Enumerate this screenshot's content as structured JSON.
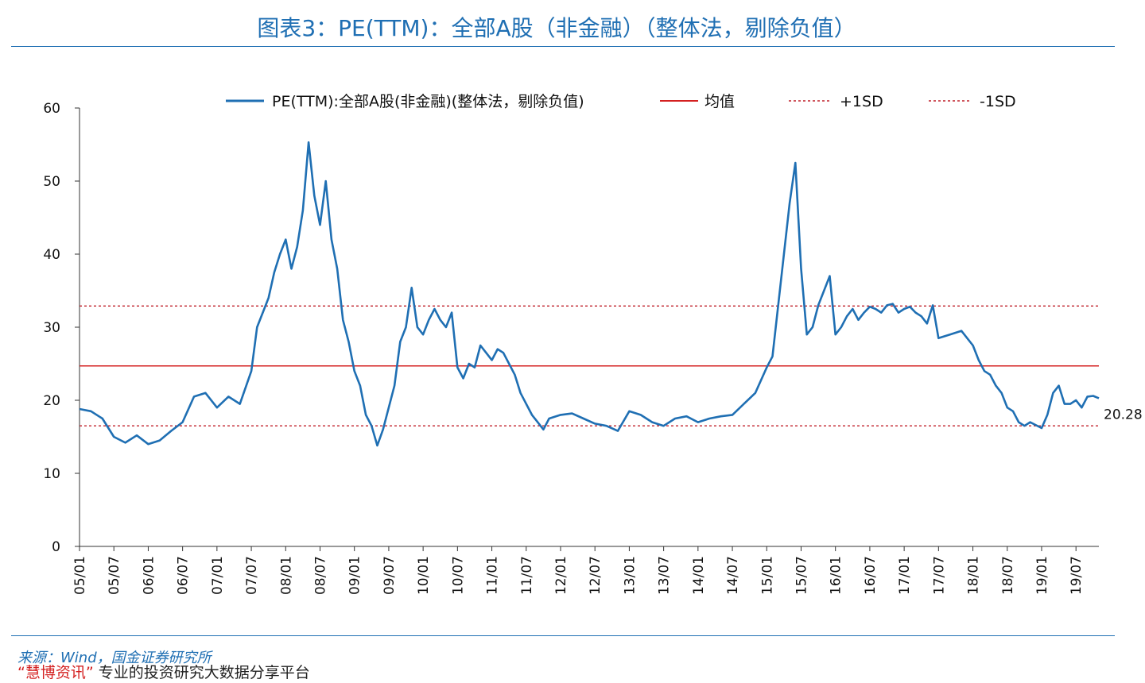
{
  "title": "图表3：PE(TTM)：全部A股（非金融）（整体法，剔除负值）",
  "source": "来源：Wind，国金证券研究所",
  "watermark": {
    "brand": "“慧博资讯”",
    "tagline": "专业的投资研究大数据分享平台"
  },
  "colors": {
    "series": "#1f6fb3",
    "mean": "#d42020",
    "sd": "#c0202a",
    "title": "#1f6fb3"
  },
  "chart_data": {
    "type": "line",
    "ylim": [
      0,
      60
    ],
    "yticks": [
      0,
      10,
      20,
      30,
      40,
      50,
      60
    ],
    "xlim": [
      "2005-01",
      "2019-11"
    ],
    "xticks": [
      "05/01",
      "05/07",
      "06/01",
      "06/07",
      "07/01",
      "07/07",
      "08/01",
      "08/07",
      "09/01",
      "09/07",
      "10/01",
      "10/07",
      "11/01",
      "11/07",
      "12/01",
      "12/07",
      "13/01",
      "13/07",
      "14/01",
      "14/07",
      "15/01",
      "15/07",
      "16/01",
      "16/07",
      "17/01",
      "17/07",
      "18/01",
      "18/07",
      "19/01",
      "19/07"
    ],
    "legend_position": "top",
    "series": [
      {
        "name": "PE(TTM):全部A股(非金融)(整体法，剔除负值)",
        "style": "solid",
        "points": [
          [
            "2005-01",
            18.8
          ],
          [
            "2005-03",
            18.5
          ],
          [
            "2005-05",
            17.5
          ],
          [
            "2005-07",
            15.0
          ],
          [
            "2005-09",
            14.2
          ],
          [
            "2005-11",
            15.2
          ],
          [
            "2006-01",
            14.0
          ],
          [
            "2006-03",
            14.5
          ],
          [
            "2006-05",
            15.8
          ],
          [
            "2006-07",
            17.0
          ],
          [
            "2006-09",
            20.5
          ],
          [
            "2006-11",
            21.0
          ],
          [
            "2007-01",
            19.0
          ],
          [
            "2007-03",
            20.5
          ],
          [
            "2007-05",
            19.5
          ],
          [
            "2007-07",
            24.0
          ],
          [
            "2007-08",
            30.0
          ],
          [
            "2007-09",
            32.0
          ],
          [
            "2007-10",
            34.0
          ],
          [
            "2007-11",
            37.5
          ],
          [
            "2007-12",
            40.0
          ],
          [
            "2008-01",
            42.0
          ],
          [
            "2008-02",
            38.0
          ],
          [
            "2008-03",
            41.0
          ],
          [
            "2008-04",
            46.0
          ],
          [
            "2008-05",
            55.3
          ],
          [
            "2008-06",
            48.0
          ],
          [
            "2008-07",
            44.0
          ],
          [
            "2008-08",
            50.0
          ],
          [
            "2008-09",
            42.0
          ],
          [
            "2008-10",
            38.0
          ],
          [
            "2008-11",
            31.0
          ],
          [
            "2008-12",
            28.0
          ],
          [
            "2009-01",
            24.0
          ],
          [
            "2009-02",
            22.0
          ],
          [
            "2009-03",
            18.0
          ],
          [
            "2009-04",
            16.5
          ],
          [
            "2009-05",
            13.8
          ],
          [
            "2009-06",
            16.0
          ],
          [
            "2009-07",
            19.0
          ],
          [
            "2009-08",
            22.0
          ],
          [
            "2009-09",
            28.0
          ],
          [
            "2009-10",
            30.0
          ],
          [
            "2009-11",
            35.4
          ],
          [
            "2009-12",
            30.0
          ],
          [
            "2010-01",
            29.0
          ],
          [
            "2010-02",
            31.0
          ],
          [
            "2010-03",
            32.5
          ],
          [
            "2010-04",
            31.0
          ],
          [
            "2010-05",
            30.0
          ],
          [
            "2010-06",
            32.0
          ],
          [
            "2010-07",
            24.5
          ],
          [
            "2010-08",
            23.0
          ],
          [
            "2010-09",
            25.0
          ],
          [
            "2010-10",
            24.5
          ],
          [
            "2010-11",
            27.5
          ],
          [
            "2010-12",
            26.5
          ],
          [
            "2011-01",
            25.5
          ],
          [
            "2011-02",
            27.0
          ],
          [
            "2011-03",
            26.5
          ],
          [
            "2011-04",
            25.0
          ],
          [
            "2011-05",
            23.5
          ],
          [
            "2011-06",
            21.0
          ],
          [
            "2011-07",
            19.5
          ],
          [
            "2011-08",
            18.0
          ],
          [
            "2011-09",
            17.0
          ],
          [
            "2011-10",
            16.0
          ],
          [
            "2011-11",
            17.5
          ],
          [
            "2012-01",
            18.0
          ],
          [
            "2012-03",
            18.2
          ],
          [
            "2012-05",
            17.5
          ],
          [
            "2012-07",
            16.8
          ],
          [
            "2012-09",
            16.5
          ],
          [
            "2012-11",
            15.8
          ],
          [
            "2013-01",
            18.5
          ],
          [
            "2013-03",
            18.0
          ],
          [
            "2013-05",
            17.0
          ],
          [
            "2013-07",
            16.5
          ],
          [
            "2013-09",
            17.5
          ],
          [
            "2013-11",
            17.8
          ],
          [
            "2014-01",
            17.0
          ],
          [
            "2014-03",
            17.5
          ],
          [
            "2014-05",
            17.8
          ],
          [
            "2014-07",
            18.0
          ],
          [
            "2014-09",
            19.5
          ],
          [
            "2014-11",
            21.0
          ],
          [
            "2015-01",
            24.5
          ],
          [
            "2015-02",
            26.0
          ],
          [
            "2015-03",
            33.0
          ],
          [
            "2015-04",
            40.0
          ],
          [
            "2015-05",
            47.0
          ],
          [
            "2015-06",
            52.5
          ],
          [
            "2015-07",
            38.0
          ],
          [
            "2015-08",
            29.0
          ],
          [
            "2015-09",
            30.0
          ],
          [
            "2015-10",
            33.0
          ],
          [
            "2015-11",
            35.0
          ],
          [
            "2015-12",
            37.0
          ],
          [
            "2016-01",
            29.0
          ],
          [
            "2016-02",
            30.0
          ],
          [
            "2016-03",
            31.5
          ],
          [
            "2016-04",
            32.5
          ],
          [
            "2016-05",
            31.0
          ],
          [
            "2016-06",
            32.0
          ],
          [
            "2016-07",
            32.8
          ],
          [
            "2016-08",
            32.5
          ],
          [
            "2016-09",
            32.0
          ],
          [
            "2016-10",
            33.0
          ],
          [
            "2016-11",
            33.2
          ],
          [
            "2016-12",
            32.0
          ],
          [
            "2017-01",
            32.5
          ],
          [
            "2017-02",
            32.8
          ],
          [
            "2017-03",
            32.0
          ],
          [
            "2017-04",
            31.5
          ],
          [
            "2017-05",
            30.5
          ],
          [
            "2017-06",
            33.0
          ],
          [
            "2017-07",
            28.5
          ],
          [
            "2017-09",
            29.0
          ],
          [
            "2017-11",
            29.5
          ],
          [
            "2018-01",
            27.5
          ],
          [
            "2018-02",
            25.5
          ],
          [
            "2018-03",
            24.0
          ],
          [
            "2018-04",
            23.5
          ],
          [
            "2018-05",
            22.0
          ],
          [
            "2018-06",
            21.0
          ],
          [
            "2018-07",
            19.0
          ],
          [
            "2018-08",
            18.5
          ],
          [
            "2018-09",
            17.0
          ],
          [
            "2018-10",
            16.5
          ],
          [
            "2018-11",
            17.0
          ],
          [
            "2019-01",
            16.2
          ],
          [
            "2019-02",
            18.0
          ],
          [
            "2019-03",
            21.0
          ],
          [
            "2019-04",
            22.0
          ],
          [
            "2019-05",
            19.5
          ],
          [
            "2019-06",
            19.5
          ],
          [
            "2019-07",
            20.0
          ],
          [
            "2019-08",
            19.0
          ],
          [
            "2019-09",
            20.5
          ],
          [
            "2019-10",
            20.6
          ],
          [
            "2019-11",
            20.28
          ]
        ]
      },
      {
        "name": "均值",
        "style": "solid",
        "value": 24.7
      },
      {
        "name": "+1SD",
        "style": "dashed",
        "value": 32.9
      },
      {
        "name": "-1SD",
        "style": "dashed",
        "value": 16.5
      }
    ],
    "end_label": "20.28"
  }
}
